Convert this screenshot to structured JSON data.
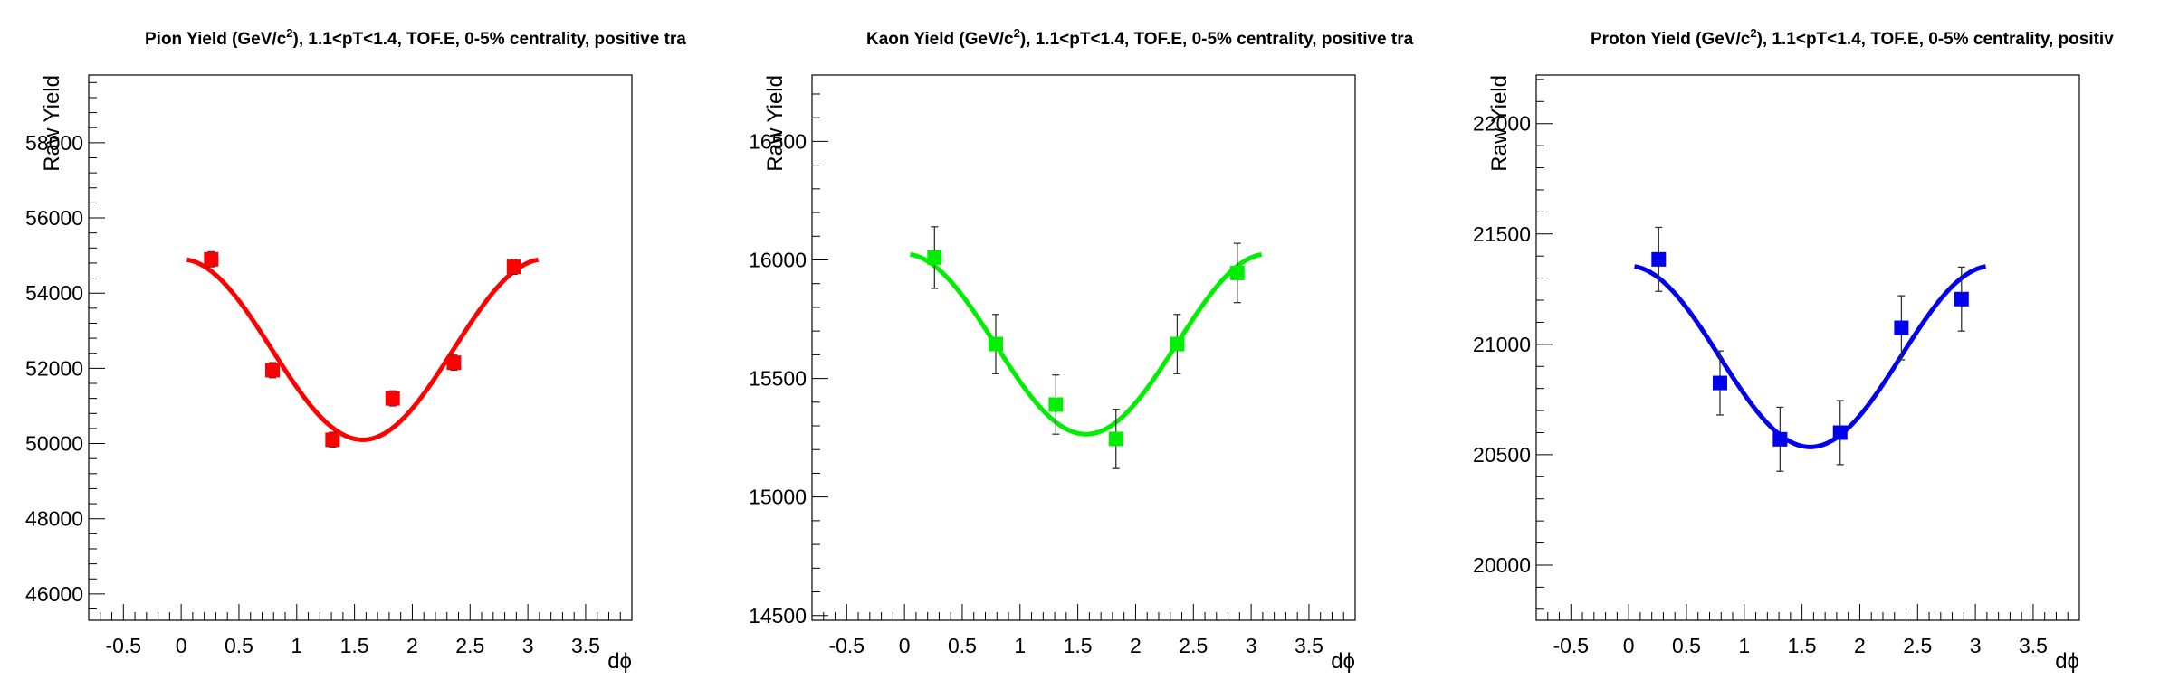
{
  "chart_data": [
    {
      "type": "scatter",
      "title_parts": [
        "Pion Yield (GeV/c",
        "2",
        "), 1.1<pT<1.4, TOF.E, 0-5% centrality, positive tra"
      ],
      "xlabel": "dϕ",
      "ylabel": "Raw Yield",
      "xlim": [
        -0.8,
        3.9
      ],
      "ylim": [
        45300,
        59800
      ],
      "xticks": [
        -0.5,
        0,
        0.5,
        1,
        1.5,
        2,
        2.5,
        3,
        3.5
      ],
      "xtick_labels": [
        "-0.5",
        "0",
        "0.5",
        "1",
        "1.5",
        "2",
        "2.5",
        "3",
        "3.5"
      ],
      "yticks": [
        46000,
        48000,
        50000,
        52000,
        54000,
        56000,
        58000
      ],
      "ytick_labels": [
        "46000",
        "48000",
        "50000",
        "52000",
        "54000",
        "56000",
        "58000"
      ],
      "color": "#ff0000",
      "points": [
        {
          "x": 0.26,
          "y": 54900,
          "err": 200
        },
        {
          "x": 0.79,
          "y": 51950,
          "err": 200
        },
        {
          "x": 1.31,
          "y": 50100,
          "err": 200
        },
        {
          "x": 1.83,
          "y": 51200,
          "err": 200
        },
        {
          "x": 2.36,
          "y": 52150,
          "err": 200
        },
        {
          "x": 2.88,
          "y": 54700,
          "err": 200
        }
      ],
      "fit": {
        "form": "a + b*cos(2x)",
        "a": 52500,
        "b": 2400,
        "x_range": [
          0.05,
          3.09
        ]
      }
    },
    {
      "type": "scatter",
      "title_parts": [
        "Kaon Yield (GeV/c",
        "2",
        "), 1.1<pT<1.4, TOF.E, 0-5% centrality, positive tra"
      ],
      "xlabel": "dϕ",
      "ylabel": "Raw Yield",
      "xlim": [
        -0.8,
        3.9
      ],
      "ylim": [
        14480,
        16780
      ],
      "xticks": [
        -0.5,
        0,
        0.5,
        1,
        1.5,
        2,
        2.5,
        3,
        3.5
      ],
      "xtick_labels": [
        "-0.5",
        "0",
        "0.5",
        "1",
        "1.5",
        "2",
        "2.5",
        "3",
        "3.5"
      ],
      "yticks": [
        14500,
        15000,
        15500,
        16000,
        16500
      ],
      "ytick_labels": [
        "14500",
        "15000",
        "15500",
        "16000",
        "16500"
      ],
      "color": "#00ee00",
      "points": [
        {
          "x": 0.26,
          "y": 16010,
          "err": 130
        },
        {
          "x": 0.79,
          "y": 15645,
          "err": 125
        },
        {
          "x": 1.31,
          "y": 15390,
          "err": 125
        },
        {
          "x": 1.83,
          "y": 15245,
          "err": 125
        },
        {
          "x": 2.36,
          "y": 15645,
          "err": 125
        },
        {
          "x": 2.88,
          "y": 15945,
          "err": 125
        }
      ],
      "fit": {
        "form": "a + b*cos(2x)",
        "a": 15645,
        "b": 380,
        "x_range": [
          0.05,
          3.09
        ]
      }
    },
    {
      "type": "scatter",
      "title_parts": [
        "Proton Yield (GeV/c",
        "2",
        "), 1.1<pT<1.4, TOF.E, 0-5% centrality, positiv"
      ],
      "xlabel": "dϕ",
      "ylabel": "Raw Yield",
      "xlim": [
        -0.8,
        3.9
      ],
      "ylim": [
        19750,
        22220
      ],
      "xticks": [
        -0.5,
        0,
        0.5,
        1,
        1.5,
        2,
        2.5,
        3,
        3.5
      ],
      "xtick_labels": [
        "-0.5",
        "0",
        "0.5",
        "1",
        "1.5",
        "2",
        "2.5",
        "3",
        "3.5"
      ],
      "yticks": [
        20000,
        20500,
        21000,
        21500,
        22000
      ],
      "ytick_labels": [
        "20000",
        "20500",
        "21000",
        "21500",
        "22000"
      ],
      "color": "#0000ee",
      "points": [
        {
          "x": 0.26,
          "y": 21385,
          "err": 145
        },
        {
          "x": 0.79,
          "y": 20825,
          "err": 145
        },
        {
          "x": 1.31,
          "y": 20570,
          "err": 145
        },
        {
          "x": 1.83,
          "y": 20600,
          "err": 145
        },
        {
          "x": 2.36,
          "y": 21075,
          "err": 145
        },
        {
          "x": 2.88,
          "y": 21205,
          "err": 145
        }
      ],
      "fit": {
        "form": "a + b*cos(2x)",
        "a": 20945,
        "b": 410,
        "x_range": [
          0.05,
          3.09
        ]
      }
    }
  ]
}
